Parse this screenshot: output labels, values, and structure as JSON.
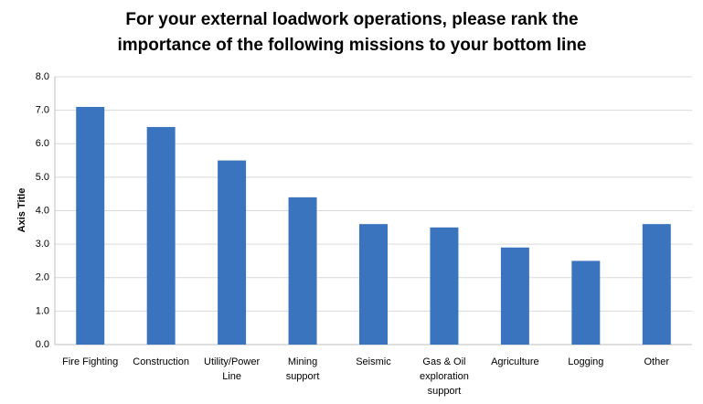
{
  "chart_data": {
    "type": "bar",
    "title": [
      "For your external loadwork operations, please rank the",
      "importance of the following missions to your bottom line"
    ],
    "y_axis_label": "Axis Title",
    "categories": [
      "Fire Fighting",
      "Construction",
      "Utility/Power\nLine",
      "Mining\nsupport",
      "Seismic",
      "Gas & Oil\nexploration\nsupport",
      "Agriculture",
      "Logging",
      "Other"
    ],
    "values": [
      7.1,
      6.5,
      5.5,
      4.4,
      3.6,
      3.5,
      2.9,
      2.5,
      3.6
    ],
    "color": "#3a74be",
    "ylim": [
      0,
      8
    ],
    "yticks": [
      {
        "value": 0,
        "label": "0.0"
      },
      {
        "value": 1,
        "label": "1.0"
      },
      {
        "value": 2,
        "label": "2.0"
      },
      {
        "value": 3,
        "label": "3.0"
      },
      {
        "value": 4,
        "label": "4.0"
      },
      {
        "value": 5,
        "label": "5.0"
      },
      {
        "value": 6,
        "label": "6.0"
      },
      {
        "value": 7,
        "label": "7.0"
      },
      {
        "value": 8,
        "label": "8.0"
      }
    ],
    "grid": true
  }
}
